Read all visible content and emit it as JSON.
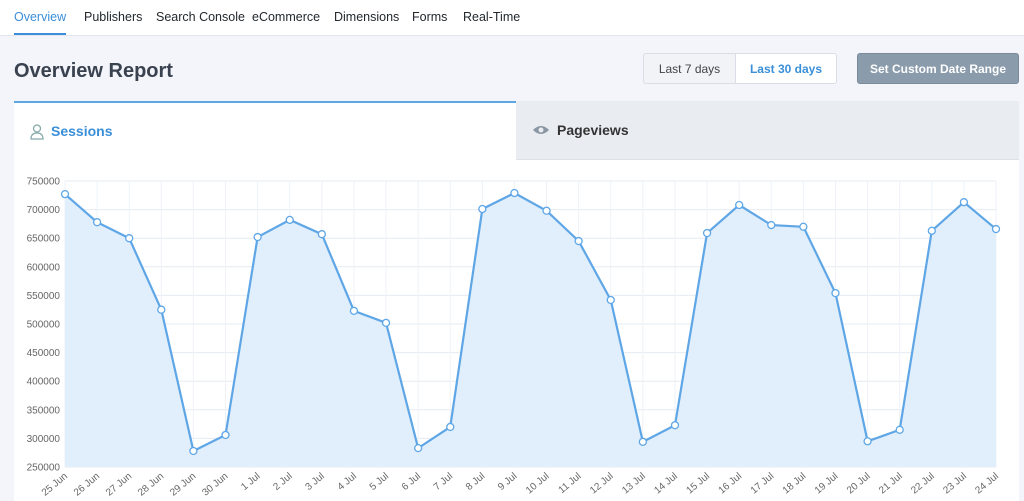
{
  "nav": {
    "tabs": [
      "Overview",
      "Publishers",
      "Search Console",
      "eCommerce",
      "Dimensions",
      "Forms",
      "Real-Time"
    ]
  },
  "header": {
    "title": "Overview Report",
    "range_buttons": [
      "Last 7 days",
      "Last 30 days"
    ],
    "custom_button": "Set Custom Date Range"
  },
  "report_tabs": [
    "Sessions",
    "Pageviews"
  ],
  "chart_data": {
    "type": "line",
    "categories": [
      "25 Jun",
      "26 Jun",
      "27 Jun",
      "28 Jun",
      "29 Jun",
      "30 Jun",
      "1 Jul",
      "2 Jul",
      "3 Jul",
      "4 Jul",
      "5 Jul",
      "6 Jul",
      "7 Jul",
      "8 Jul",
      "9 Jul",
      "10 Jul",
      "11 Jul",
      "12 Jul",
      "13 Jul",
      "14 Jul",
      "15 Jul",
      "16 Jul",
      "17 Jul",
      "18 Jul",
      "19 Jul",
      "20 Jul",
      "21 Jul",
      "22 Jul",
      "23 Jul",
      "24 Jul"
    ],
    "values": [
      727000,
      678000,
      650000,
      525000,
      278000,
      306000,
      652000,
      682000,
      657000,
      523000,
      502000,
      283000,
      320000,
      701000,
      729000,
      698000,
      645000,
      542000,
      294000,
      323000,
      659000,
      708000,
      673000,
      670000,
      554000,
      295000,
      315000,
      663000,
      713000,
      666000
    ],
    "color": "#5ea6e6",
    "fill_color": "#e1eefb",
    "ylim": [
      250000,
      750000
    ],
    "yticks": [
      250000,
      300000,
      350000,
      400000,
      450000,
      500000,
      550000,
      600000,
      650000,
      700000,
      750000
    ],
    "grid": true
  }
}
